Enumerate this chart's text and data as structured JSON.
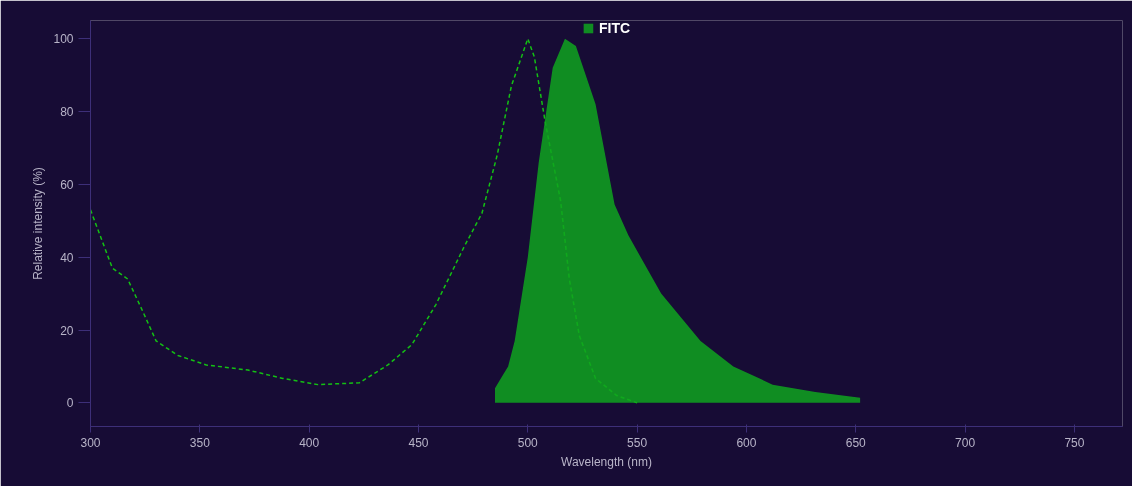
{
  "chart_data": {
    "type": "area",
    "xlabel": "Wavelength (nm)",
    "ylabel": "Relative intensity (%)",
    "xlim": [
      300,
      772
    ],
    "ylim": [
      -6.5,
      105
    ],
    "xticks": [
      300,
      350,
      400,
      450,
      500,
      550,
      600,
      650,
      700,
      750
    ],
    "yticks": [
      0,
      20,
      40,
      60,
      80,
      100
    ],
    "grid": false,
    "legend": "top",
    "series": [
      {
        "type": "line",
        "line_style": "dashed",
        "color": "#13c013",
        "x": [
          300,
          305,
          310,
          317,
          324,
          330,
          340,
          353,
          372,
          388,
          404,
          423,
          436,
          447,
          458,
          471,
          479,
          486,
          492.5,
          500,
          503,
          508,
          515,
          519,
          523.6,
          531,
          540.7,
          550
        ],
        "values": [
          53,
          45,
          37,
          34,
          25,
          17,
          13,
          10.4,
          9,
          6.7,
          5,
          5.5,
          10.4,
          16,
          27,
          43,
          52,
          68,
          87,
          100,
          95,
          77,
          55.5,
          34,
          18.4,
          6.7,
          2,
          0
        ]
      },
      {
        "name": "FITC",
        "color": "#0fa51f",
        "x": [
          485,
          485,
          488,
          491,
          494,
          500,
          505,
          511.4,
          517,
          522,
          531,
          539.7,
          546,
          561,
          579,
          594,
          612,
          631.5,
          652,
          652
        ],
        "values": [
          0,
          4,
          7,
          10,
          17,
          40,
          66,
          92,
          100,
          98,
          82,
          54.5,
          46,
          30,
          17,
          10,
          5,
          3,
          1.4,
          0
        ]
      }
    ]
  }
}
